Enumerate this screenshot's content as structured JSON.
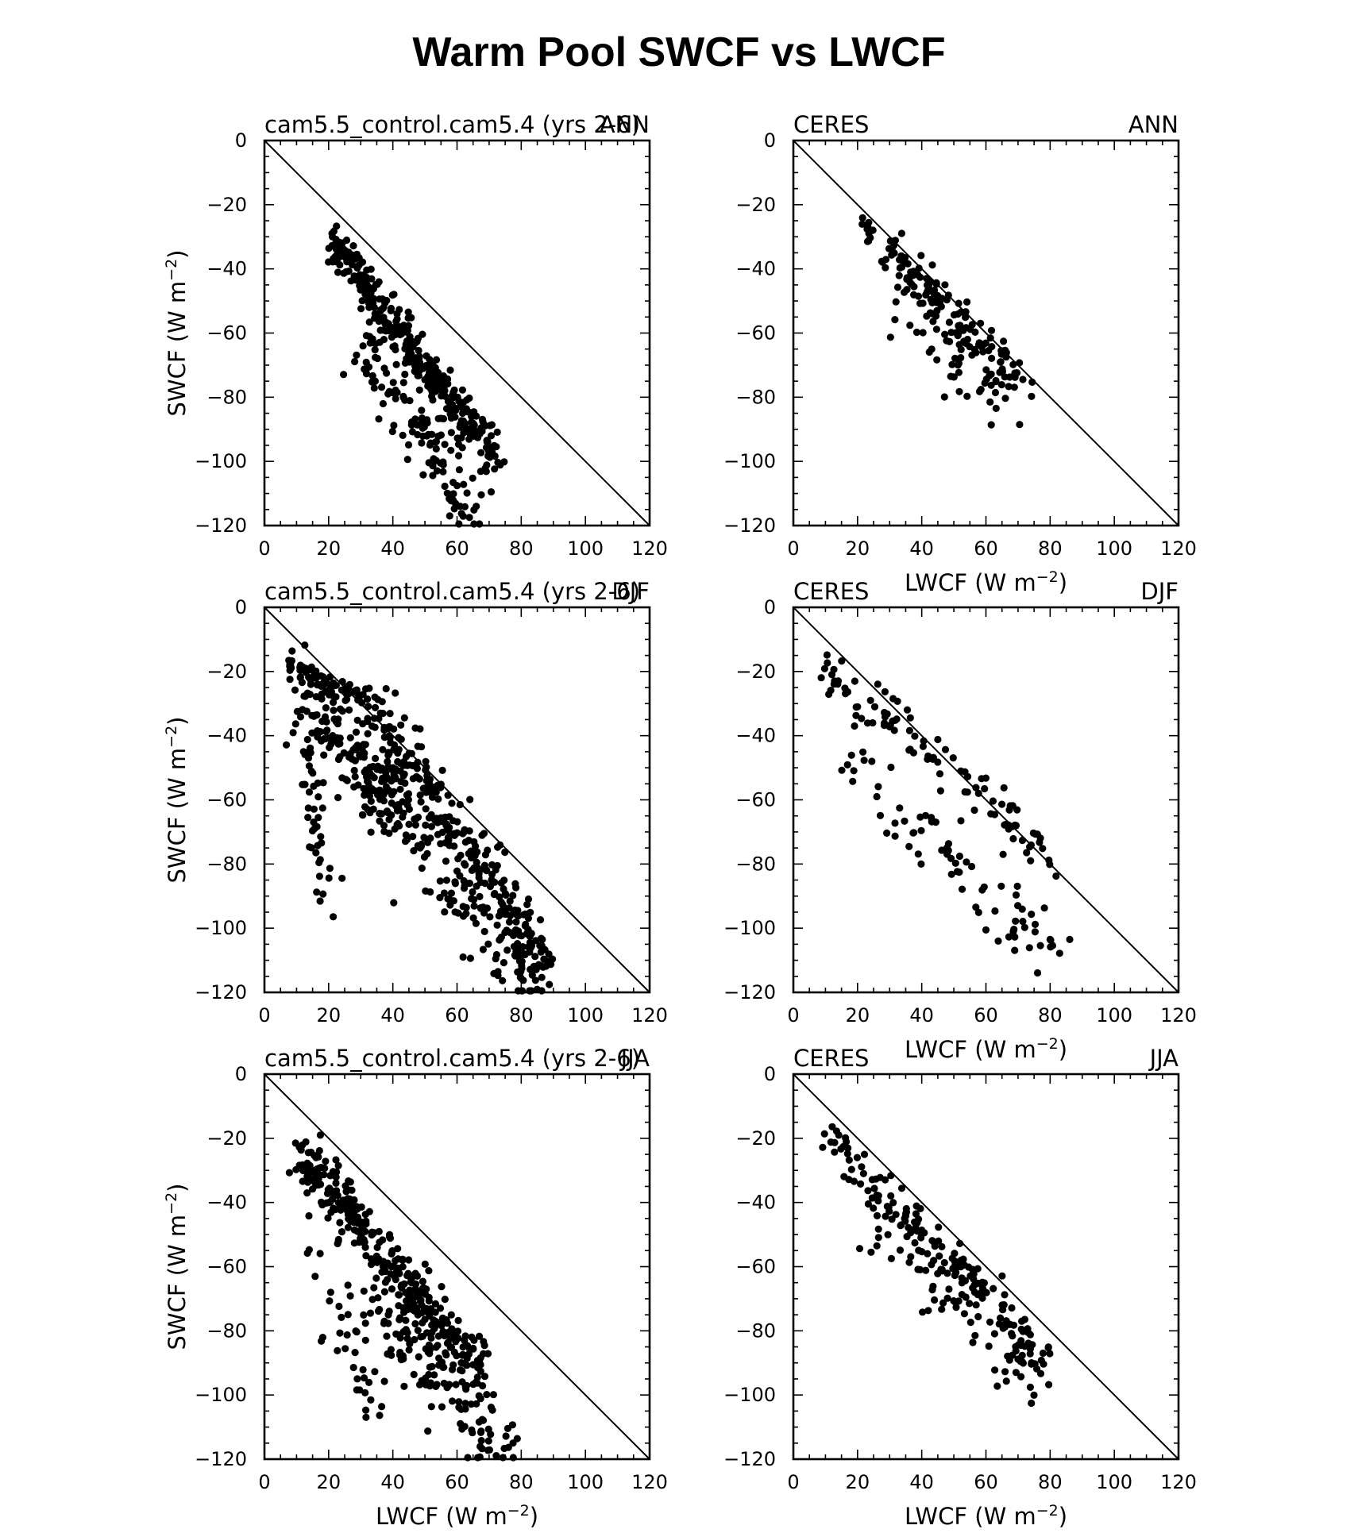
{
  "figure": {
    "title": "Warm Pool SWCF vs LWCF",
    "axis_ticks": {
      "x": [
        "0",
        "20",
        "40",
        "60",
        "80",
        "100",
        "120"
      ],
      "y": [
        "0",
        "−20",
        "−40",
        "−60",
        "−80",
        "−100",
        "−120"
      ]
    },
    "xlabel": {
      "main": "LWCF",
      "unit_open": "(W m",
      "unit_exp": "−2",
      "unit_close": ")"
    },
    "ylabel": {
      "main": "SWCF",
      "unit_open": "(W m",
      "unit_exp": "−2",
      "unit_close": ")"
    }
  },
  "chart_data": [
    {
      "type": "scatter",
      "panel": "model-ann",
      "left_label": "cam5.5_control.cam5.4  (yrs 2-6)",
      "right_label": "ANN",
      "xlim": [
        0,
        120
      ],
      "ylim": [
        -120,
        0
      ],
      "reference_line": "y = -x",
      "point_style": "filled black circle",
      "clusters": [
        {
          "from": [
            21,
            -32
          ],
          "to": [
            72,
            -98
          ],
          "count": 330,
          "spread": 3.2
        },
        {
          "from": [
            29,
            -58
          ],
          "to": [
            66,
            -117
          ],
          "count": 130,
          "spread": 6
        }
      ]
    },
    {
      "type": "scatter",
      "panel": "obs-ann",
      "left_label": "CERES",
      "right_label": "ANN",
      "xlim": [
        0,
        120
      ],
      "ylim": [
        -120,
        0
      ],
      "reference_line": "y = -x",
      "point_style": "filled black circle",
      "clusters": [
        {
          "from": [
            23,
            -28
          ],
          "to": [
            72,
            -76
          ],
          "count": 140,
          "spread": 3.5
        },
        {
          "from": [
            30,
            -50
          ],
          "to": [
            70,
            -86
          ],
          "count": 50,
          "spread": 6
        }
      ]
    },
    {
      "type": "scatter",
      "panel": "model-djf",
      "left_label": "cam5.5_control.cam5.4  (yrs 2-6)",
      "right_label": "DJF",
      "xlim": [
        0,
        120
      ],
      "ylim": [
        -120,
        0
      ],
      "reference_line": "y = -x",
      "point_style": "filled black circle",
      "clusters": [
        {
          "from": [
            7,
            -18
          ],
          "to": [
            32,
            -30
          ],
          "count": 60,
          "spread": 2
        },
        {
          "from": [
            32,
            -30
          ],
          "to": [
            88,
            -112
          ],
          "count": 260,
          "spread": 5.5
        },
        {
          "from": [
            10,
            -25
          ],
          "to": [
            40,
            -65
          ],
          "count": 170,
          "spread": 6
        },
        {
          "from": [
            12,
            -40
          ],
          "to": [
            20,
            -90
          ],
          "count": 40,
          "spread": 3
        },
        {
          "from": [
            40,
            -60
          ],
          "to": [
            85,
            -118
          ],
          "count": 140,
          "spread": 7
        }
      ]
    },
    {
      "type": "scatter",
      "panel": "obs-djf",
      "left_label": "CERES",
      "right_label": "DJF",
      "xlim": [
        0,
        120
      ],
      "ylim": [
        -120,
        0
      ],
      "reference_line": "y = -x",
      "point_style": "filled black circle",
      "clusters": [
        {
          "from": [
            10,
            -18
          ],
          "to": [
            83,
            -80
          ],
          "count": 100,
          "spread": 4
        },
        {
          "from": [
            15,
            -45
          ],
          "to": [
            80,
            -108
          ],
          "count": 80,
          "spread": 6
        }
      ]
    },
    {
      "type": "scatter",
      "panel": "model-jja",
      "left_label": "cam5.5_control.cam5.4  (yrs 2-6)",
      "right_label": "JJA",
      "xlim": [
        0,
        120
      ],
      "ylim": [
        -120,
        0
      ],
      "reference_line": "y = -x",
      "point_style": "filled black circle",
      "clusters": [
        {
          "from": [
            10,
            -23
          ],
          "to": [
            68,
            -93
          ],
          "count": 330,
          "spread": 4
        },
        {
          "from": [
            35,
            -70
          ],
          "to": [
            74,
            -118
          ],
          "count": 140,
          "spread": 7
        },
        {
          "from": [
            15,
            -50
          ],
          "to": [
            35,
            -105
          ],
          "count": 40,
          "spread": 6
        }
      ]
    },
    {
      "type": "scatter",
      "panel": "obs-jja",
      "left_label": "CERES",
      "right_label": "JJA",
      "xlim": [
        0,
        120
      ],
      "ylim": [
        -120,
        0
      ],
      "reference_line": "y = -x",
      "point_style": "filled black circle",
      "clusters": [
        {
          "from": [
            11,
            -19
          ],
          "to": [
            80,
            -90
          ],
          "count": 150,
          "spread": 3.5
        },
        {
          "from": [
            25,
            -45
          ],
          "to": [
            75,
            -95
          ],
          "count": 80,
          "spread": 6
        }
      ]
    }
  ]
}
